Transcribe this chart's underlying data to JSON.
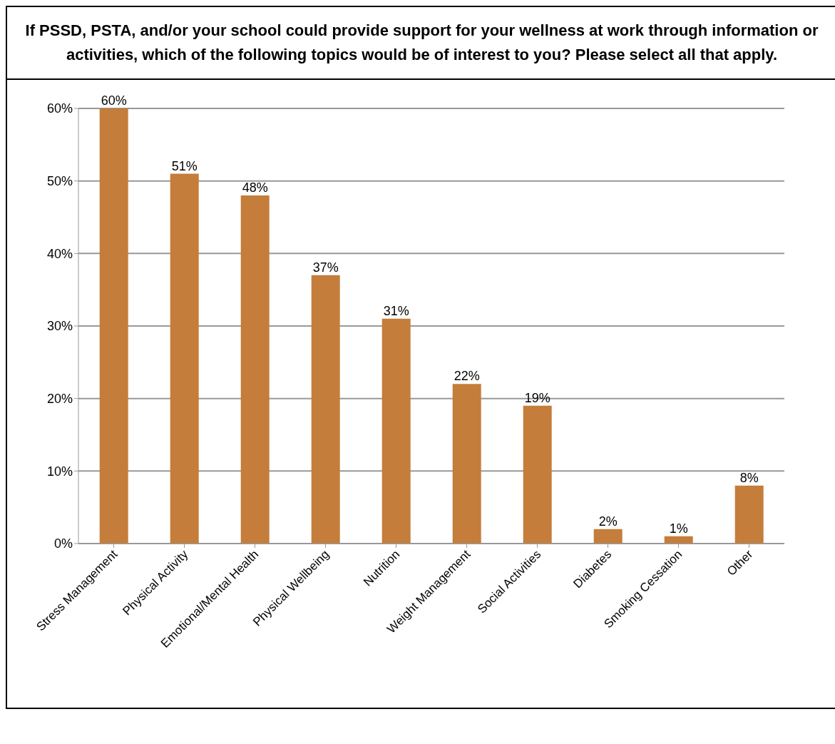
{
  "chart_data": {
    "type": "bar",
    "title": "If PSSD, PSTA, and/or your school could provide support for your wellness at work through information or activities, which of the following topics would be of interest to you?  Please select all that apply.",
    "categories": [
      "Stress Management",
      "Physical Activity",
      "Emotional/Mental Health",
      "Physical Wellbeing",
      "Nutrition",
      "Weight Management",
      "Social Activities",
      "Diabetes",
      "Smoking Cessation",
      "Other"
    ],
    "values": [
      60,
      51,
      48,
      37,
      31,
      22,
      19,
      2,
      1,
      8
    ],
    "value_labels": [
      "60%",
      "51%",
      "48%",
      "37%",
      "31%",
      "22%",
      "19%",
      "2%",
      "1%",
      "8%"
    ],
    "color": "#c57d3b",
    "ylim": [
      0,
      60
    ],
    "yticks": [
      {
        "value": 0,
        "label": "0%"
      },
      {
        "value": 10,
        "label": "10%"
      },
      {
        "value": 20,
        "label": "20%"
      },
      {
        "value": 30,
        "label": "30%"
      },
      {
        "value": 40,
        "label": "40%"
      },
      {
        "value": 50,
        "label": "50%"
      },
      {
        "value": 60,
        "label": "60%"
      }
    ],
    "grid": "y",
    "legend": false
  }
}
